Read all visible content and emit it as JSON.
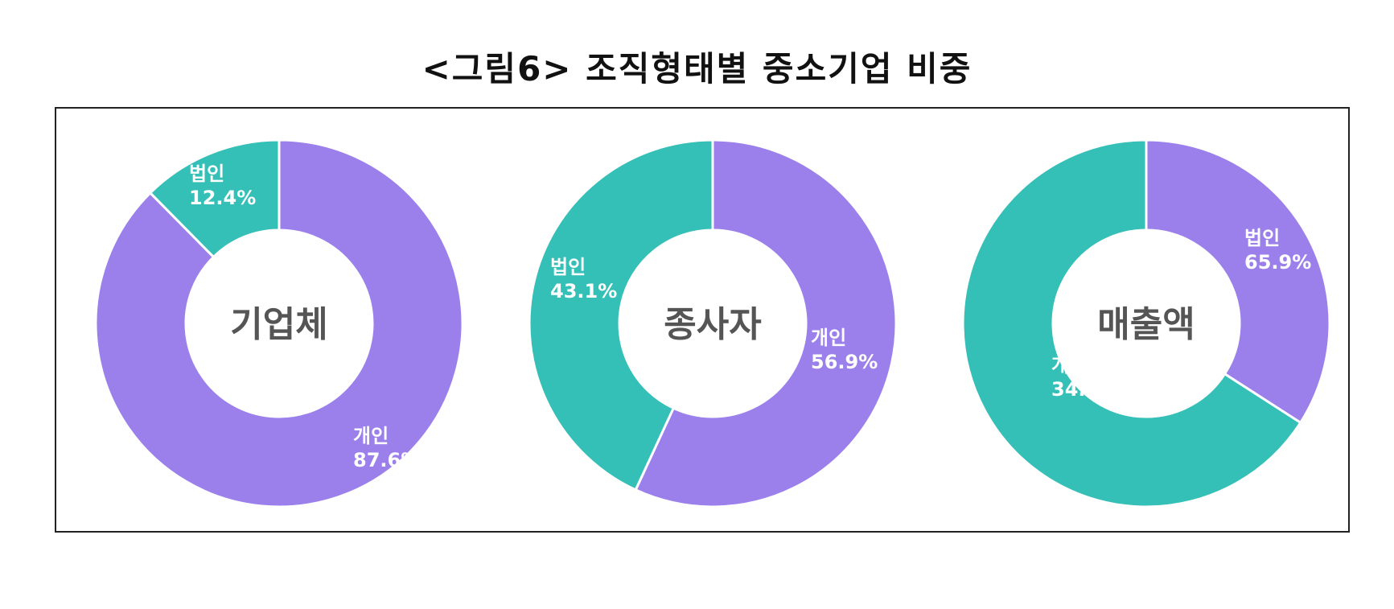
{
  "title": "<그림6> 조직형태별 중소기업 비중",
  "colors": {
    "individual": "#9b80ec",
    "corporate": "#34bfb7",
    "separator": "#ffffff"
  },
  "chart_data": [
    {
      "type": "pie",
      "donut": true,
      "center_label": "기업체",
      "slices": [
        {
          "name": "개인",
          "value": 87.6,
          "label": "87.6%",
          "color": "#9b80ec"
        },
        {
          "name": "법인",
          "value": 12.4,
          "label": "12.4%",
          "color": "#34bfb7"
        }
      ]
    },
    {
      "type": "pie",
      "donut": true,
      "center_label": "종사자",
      "slices": [
        {
          "name": "개인",
          "value": 56.9,
          "label": "56.9%",
          "color": "#9b80ec"
        },
        {
          "name": "법인",
          "value": 43.1,
          "label": "43.1%",
          "color": "#34bfb7"
        }
      ]
    },
    {
      "type": "pie",
      "donut": true,
      "center_label": "매출액",
      "slices": [
        {
          "name": "개인",
          "value": 34.1,
          "label": "34.1%",
          "color": "#9b80ec"
        },
        {
          "name": "법인",
          "value": 65.9,
          "label": "65.9%",
          "color": "#34bfb7"
        }
      ]
    }
  ]
}
